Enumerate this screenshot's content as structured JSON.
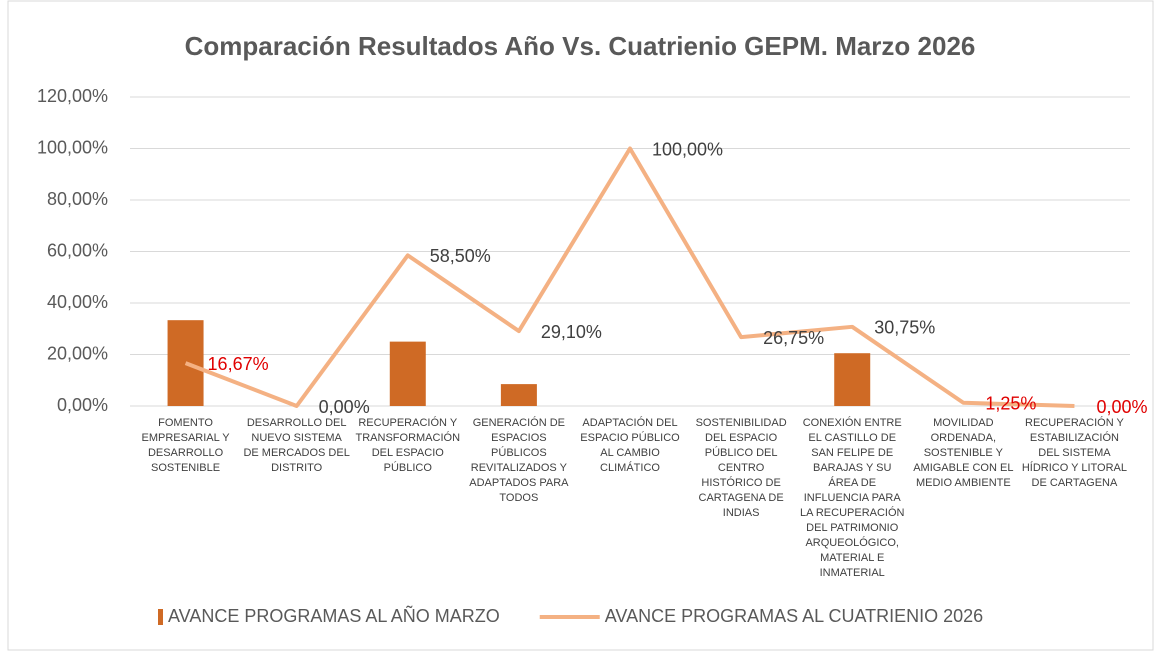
{
  "chart_data": {
    "type": "bar_line",
    "title": "Comparación Resultados Año Vs. Cuatrienio GEPM.  Marzo 2026",
    "categories": [
      "FOMENTO EMPRESARIAL Y DESARROLLO SOSTENIBLE",
      "DESARROLLO DEL NUEVO SISTEMA DE MERCADOS DEL DISTRITO",
      "RECUPERACIÓN Y TRANSFORMACIÓN DEL ESPACIO PÚBLICO",
      "GENERACIÓN DE ESPACIOS PÚBLICOS REVITALIZADOS Y ADAPTADOS PARA TODOS",
      "ADAPTACIÓN DEL ESPACIO PÚBLICO AL CAMBIO CLIMÁTICO",
      "SOSTENIBILIDAD DEL ESPACIO PÚBLICO DEL CENTRO HISTÓRICO DE CARTAGENA DE INDIAS",
      "CONEXIÓN ENTRE EL CASTILLO DE SAN FELIPE DE BARAJAS Y SU ÁREA DE INFLUENCIA PARA LA RECUPERACIÓN DEL PATRIMONIO ARQUEOLÓGICO, MATERIAL E INMATERIAL",
      "MOVILIDAD ORDENADA, SOSTENIBLE Y AMIGABLE CON EL MEDIO AMBIENTE",
      "RECUPERACIÓN Y ESTABILIZACIÓN DEL SISTEMA HÍDRICO Y LITORAL DE CARTAGENA"
    ],
    "series": [
      {
        "name": "AVANCE PROGRAMAS AL AÑO MARZO",
        "type": "bar",
        "color": "#cf6a25",
        "values": [
          33.33,
          0,
          25,
          8.5,
          0,
          0,
          20.5,
          0,
          0
        ]
      },
      {
        "name": "AVANCE PROGRAMAS AL CUATRIENIO 2026",
        "type": "line",
        "color": "#f4b183",
        "values": [
          16.67,
          0,
          58.5,
          29.1,
          100,
          26.75,
          30.75,
          1.25,
          0
        ],
        "value_labels": [
          "16,67%",
          "0,00%",
          "58,50%",
          "29,10%",
          "100,00%",
          "26,75%",
          "30,75%",
          "1,25%",
          "0,00%"
        ],
        "value_label_colors": [
          "#e00000",
          "#404040",
          "#404040",
          "#404040",
          "#404040",
          "#404040",
          "#404040",
          "#e00000",
          "#e00000"
        ]
      }
    ],
    "ylim": [
      0,
      120
    ],
    "yticks": [
      {
        "value": 0,
        "label": "0,00%"
      },
      {
        "value": 20,
        "label": "20,00%"
      },
      {
        "value": 40,
        "label": "40,00%"
      },
      {
        "value": 60,
        "label": "60,00%"
      },
      {
        "value": 80,
        "label": "80,00%"
      },
      {
        "value": 100,
        "label": "100,00%"
      },
      {
        "value": 120,
        "label": "120,00%"
      }
    ],
    "grid": true,
    "legend": "bottom"
  }
}
